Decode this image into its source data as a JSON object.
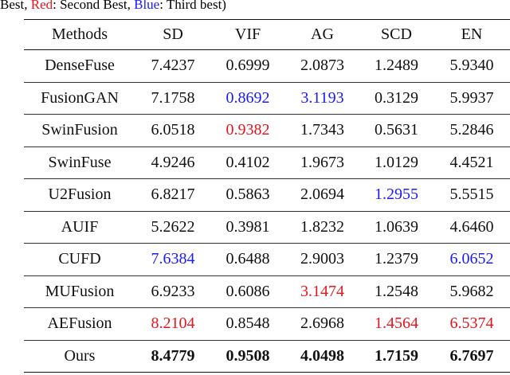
{
  "caption": {
    "parts": [
      "Best, ",
      "Red",
      ": Second Best, ",
      "Blue",
      ": Third best)"
    ],
    "part_colors": [
      "#000000",
      "#e8141c",
      "#000000",
      "#1a1aff",
      "#000000"
    ]
  },
  "table": {
    "header": [
      "Methods",
      "SD",
      "VIF",
      "AG",
      "SCD",
      "EN"
    ],
    "rows": [
      [
        "DenseFuse",
        "7.4237",
        "0.6999",
        "2.0873",
        "1.2489",
        "5.9340"
      ],
      [
        "FusionGAN",
        "7.1758",
        "0.8692",
        "3.1193",
        "0.3129",
        "5.9937"
      ],
      [
        "SwinFusion",
        "6.0518",
        "0.9382",
        "1.7343",
        "0.5631",
        "5.2846"
      ],
      [
        "SwinFuse",
        "4.9246",
        "0.4102",
        "1.9673",
        "1.0129",
        "4.4521"
      ],
      [
        "U2Fusion",
        "6.8217",
        "0.5863",
        "2.0694",
        "1.2955",
        "5.5515"
      ],
      [
        "AUIF",
        "5.2622",
        "0.3981",
        "1.8232",
        "1.0639",
        "4.6460"
      ],
      [
        "CUFD",
        "7.6384",
        "0.6488",
        "2.9003",
        "1.2379",
        "6.0652"
      ],
      [
        "MUFusion",
        "6.9233",
        "0.6086",
        "3.1474",
        "1.2548",
        "5.9682"
      ],
      [
        "AEFusion",
        "8.2104",
        "0.8548",
        "2.6968",
        "1.4564",
        "6.5374"
      ],
      [
        "Ours",
        "8.4779",
        "0.9508",
        "4.0498",
        "1.7159",
        "6.7697"
      ]
    ],
    "styles": [
      [
        "normal",
        "normal",
        "normal",
        "normal",
        "normal",
        "normal"
      ],
      [
        "normal",
        "normal",
        "blue",
        "blue",
        "normal",
        "normal"
      ],
      [
        "normal",
        "normal",
        "red",
        "normal",
        "normal",
        "normal"
      ],
      [
        "normal",
        "normal",
        "normal",
        "normal",
        "normal",
        "normal"
      ],
      [
        "normal",
        "normal",
        "normal",
        "normal",
        "blue",
        "normal"
      ],
      [
        "normal",
        "normal",
        "normal",
        "normal",
        "normal",
        "normal"
      ],
      [
        "normal",
        "blue",
        "normal",
        "normal",
        "normal",
        "blue"
      ],
      [
        "normal",
        "normal",
        "normal",
        "red",
        "normal",
        "normal"
      ],
      [
        "normal",
        "red",
        "normal",
        "normal",
        "red",
        "red"
      ],
      [
        "normal",
        "bold",
        "bold",
        "bold",
        "bold",
        "bold"
      ]
    ]
  }
}
